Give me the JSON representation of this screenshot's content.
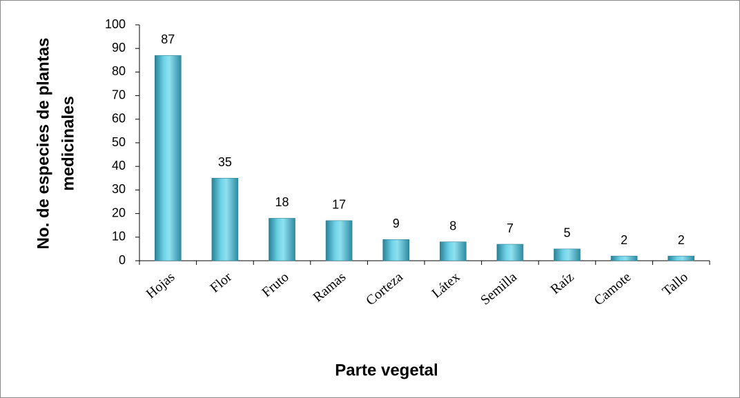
{
  "chart_data": {
    "type": "bar",
    "categories": [
      "Hojas",
      "Flor",
      "Fruto",
      "Ramas",
      "Corteza",
      "Látex",
      "Semilla",
      "Raíz",
      "Camote",
      "Tallo"
    ],
    "values": [
      87,
      35,
      18,
      17,
      9,
      8,
      7,
      5,
      2,
      2
    ],
    "color": "#4bbfd6",
    "ylim": [
      0,
      100
    ],
    "yticks": [
      0,
      10,
      20,
      30,
      40,
      50,
      60,
      70,
      80,
      90,
      100
    ],
    "grid": false,
    "x_label": "Parte vegetal",
    "y_label": [
      "No. de especies de plantas",
      "medicinales"
    ]
  }
}
